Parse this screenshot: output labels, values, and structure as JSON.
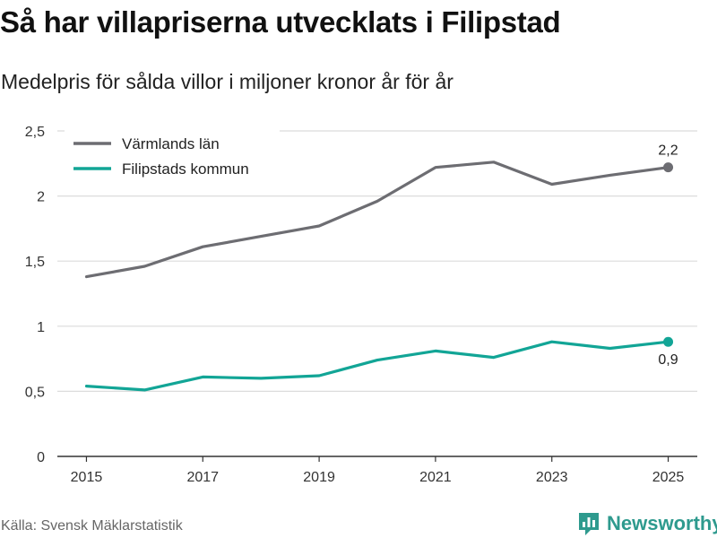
{
  "title": "Så har villapriserna utvecklats i Filipstad",
  "subtitle": "Medelpris för sålda villor i miljoner kronor år för år",
  "source": "Källa: Svensk Mäklarstatistik",
  "brand": {
    "name": "Newsworthy",
    "icon": "newsworthy-logo-icon",
    "color": "#2e9a8e"
  },
  "chart_data": {
    "type": "line",
    "x": [
      2015,
      2016,
      2017,
      2018,
      2019,
      2020,
      2021,
      2022,
      2023,
      2024,
      2025
    ],
    "x_tick_labels": [
      "2015",
      "2017",
      "2019",
      "2021",
      "2023",
      "2025"
    ],
    "y_tick_values": [
      0,
      0.5,
      1,
      1.5,
      2,
      2.5
    ],
    "y_tick_labels": [
      "0",
      "0,5",
      "1",
      "1,5",
      "2",
      "2,5"
    ],
    "ylim": [
      0,
      2.5
    ],
    "xlim": [
      2014.5,
      2025.5
    ],
    "grid": true,
    "legend_position": "top-left",
    "series": [
      {
        "name": "Värmlands län",
        "color": "#6d6d72",
        "values": [
          1.38,
          1.46,
          1.61,
          1.69,
          1.77,
          1.96,
          2.22,
          2.26,
          2.09,
          2.16,
          2.22
        ],
        "end_label": "2,2",
        "end_label_position": "above"
      },
      {
        "name": "Filipstads kommun",
        "color": "#12a596",
        "values": [
          0.54,
          0.51,
          0.61,
          0.6,
          0.62,
          0.74,
          0.81,
          0.76,
          0.88,
          0.83,
          0.88
        ],
        "end_label": "0,9",
        "end_label_position": "below"
      }
    ]
  }
}
